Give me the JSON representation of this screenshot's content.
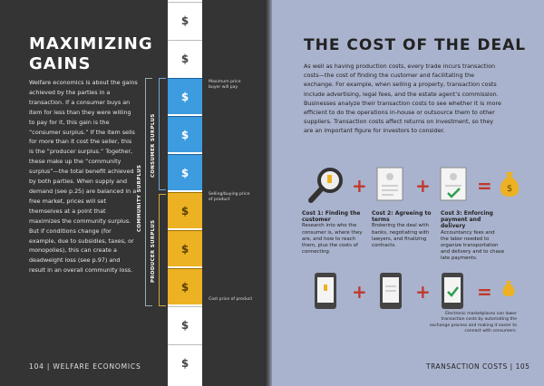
{
  "left": {
    "title_line1": "MAXIMIZING",
    "title_line2": "GAINS",
    "body": "Welfare economics is about the gains achieved by the parties in a transaction. If a consumer buys an item for less than they were willing to pay for it, this gain is the “consumer surplus.” If the item sells for more than it cost the seller, this is the “producer surplus.” Together, these make up the “community surplus”—the total benefit achieved by both parties. When supply and demand (see p.25) are balanced in a free market, prices will set themselves at a point that maximizes the community surplus. But if conditions change (for example, due to subsidies, taxes, or monopolies), this can create a deadweight loss (see p.97) and result in an overall community loss.",
    "footer": "104 | WELFARE ECONOMICS"
  },
  "column": {
    "symbol": "$",
    "labels": {
      "community": "COMMUNITY SURPLUS",
      "consumer": "CONSUMER SURPLUS",
      "producer": "PRODUCER SURPLUS"
    },
    "annotations": {
      "max": "Maximum price buyer will pay",
      "selling": "Selling/buying price of product",
      "cost": "Cost price of product"
    }
  },
  "right": {
    "title": "THE COST OF THE DEAL",
    "body": "As well as having production costs, every trade incurs transaction costs—the cost of finding the customer and facilitating the exchange. For example, when selling a property, transaction costs include advertising, legal fees, and the estate agent’s commission. Businesses analyze their transaction costs to see whether it is more efficient to do the operations in-house or outsource them to other suppliers. Transaction costs affect returns on investment, so they are an important figure for investors to consider.",
    "costs": [
      {
        "title": "Cost 1: Finding the customer",
        "text": "Research into who the consumer is, where they are, and how to reach them, plus the costs of connecting."
      },
      {
        "title": "Cost 2: Agreeing to terms",
        "text": "Brokering the deal with banks, negotiating with lawyers, and finalizing contracts."
      },
      {
        "title": "Cost 3: Enforcing payment and delivery",
        "text": "Accountancy fees and the labor needed to organize transportation and delivery and to chase late payments."
      }
    ],
    "note": "Electronic marketplaces can lower transaction costs by automating the exchange process and making it easier to connect with consumers.",
    "footer": "TRANSACTION COSTS | 105"
  },
  "colors": {
    "blue": "#3d9be0",
    "yellow": "#edb223",
    "accent": "#c0392b"
  }
}
